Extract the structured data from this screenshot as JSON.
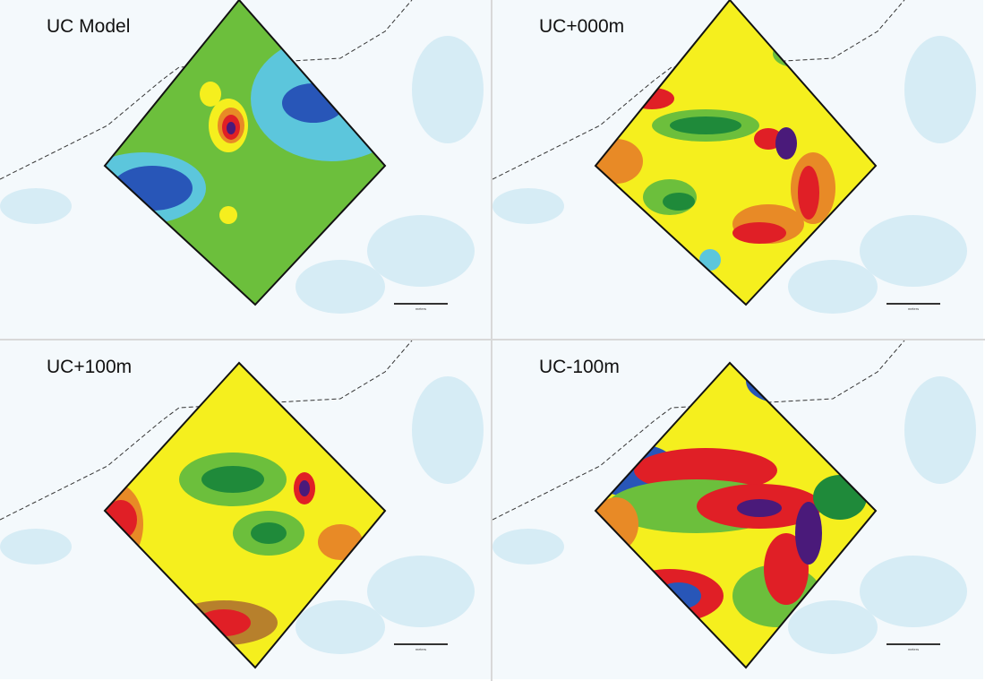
{
  "panels": [
    {
      "title": "UC Model",
      "scale_label": "meters"
    },
    {
      "title": "UC+000m",
      "scale_label": "meters"
    },
    {
      "title": "UC+100m",
      "scale_label": "meters"
    },
    {
      "title": "UC-100m",
      "scale_label": "meters"
    }
  ],
  "palette": {
    "green": "#6cbf3c",
    "dkgreen": "#1f8a3a",
    "yellow": "#f5ef1e",
    "orange": "#e88a26",
    "red": "#e01f26",
    "purple": "#4a1a7a",
    "cyan": "#5cc6dc",
    "blue": "#2856b8",
    "brown": "#b7802c",
    "water": "#d6ecf5"
  }
}
